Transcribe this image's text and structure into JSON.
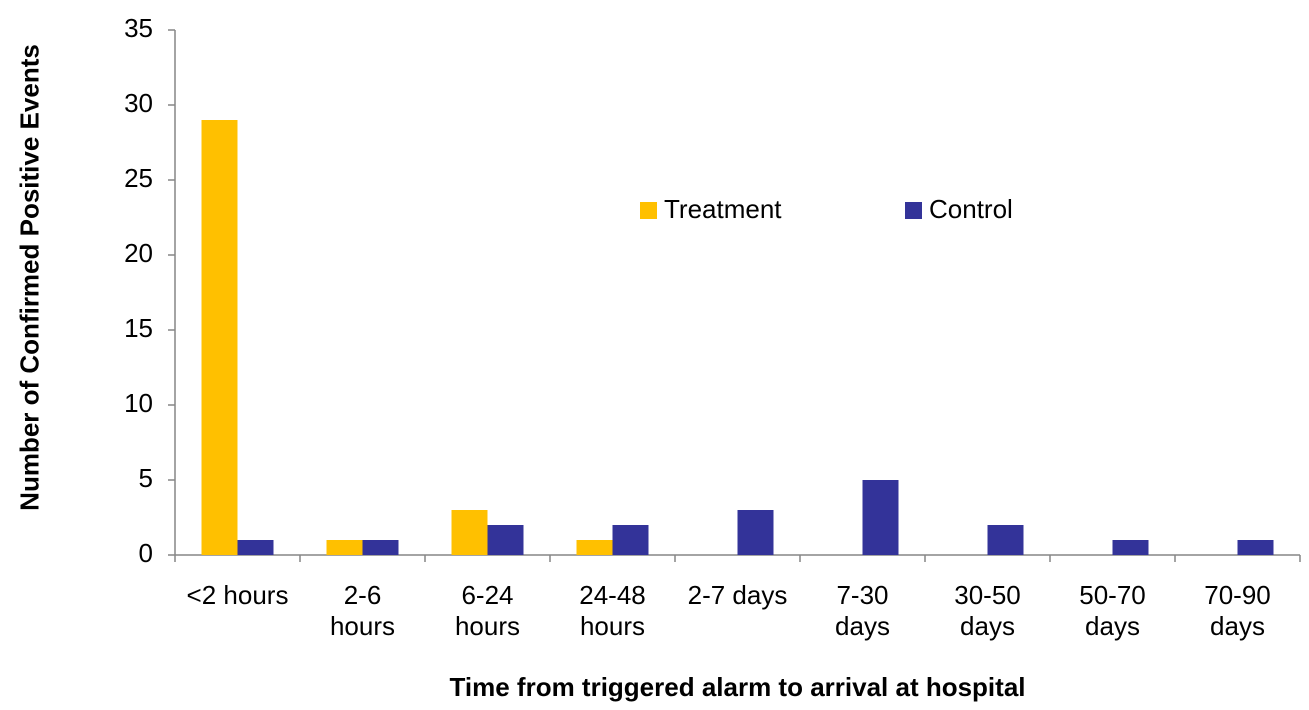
{
  "chart_data": {
    "type": "bar",
    "x_label": "Time from triggered alarm to arrival at hospital",
    "y_label": "Number of Confirmed Positive Events",
    "categories": [
      "<2 hours",
      "2-6 hours",
      "6-24 hours",
      "24-48 hours",
      "2-7 days",
      "7-30 days",
      "30-50 days",
      "50-70 days",
      "70-90 days"
    ],
    "series": [
      {
        "name": "Treatment",
        "color": "#ffc000",
        "values": [
          29,
          1,
          3,
          1,
          0,
          0,
          0,
          0,
          0
        ]
      },
      {
        "name": "Control",
        "color": "#333399",
        "values": [
          1,
          1,
          2,
          2,
          3,
          5,
          2,
          1,
          1
        ]
      }
    ],
    "ylim": [
      0,
      35
    ],
    "yticks": [
      0,
      5,
      10,
      15,
      20,
      25,
      30,
      35
    ],
    "grid": false,
    "legend": "center"
  }
}
